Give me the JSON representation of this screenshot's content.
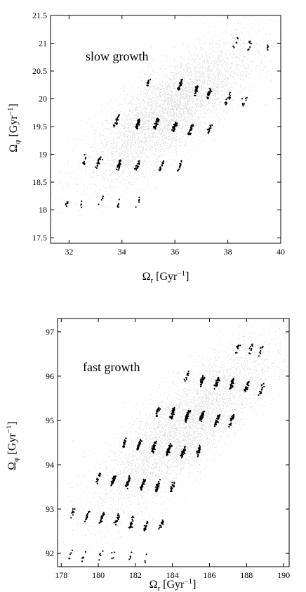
{
  "chart_data": [
    {
      "type": "scatter",
      "annotation": "slow growth",
      "xlabel": "Ω_r [Gyr^-1]",
      "ylabel": "Ω_φ [Gyr^-1]",
      "xlim": [
        31.3,
        40
      ],
      "ylim": [
        17.4,
        21.5
      ],
      "xticks": [
        32,
        34,
        36,
        38,
        40
      ],
      "yticks": [
        17.5,
        18,
        18.5,
        19,
        19.5,
        20,
        20.5,
        21,
        21.5
      ],
      "grid": false,
      "background_cloud": {
        "center": [
          35.8,
          19.8
        ],
        "spread": [
          1.6,
          0.75
        ],
        "tilt": 0.32,
        "color": "#b0b0b0"
      },
      "clumps": [
        {
          "x": 38.3,
          "y": 21.0,
          "n": 6
        },
        {
          "x": 38.8,
          "y": 20.95,
          "n": 8
        },
        {
          "x": 39.5,
          "y": 20.9,
          "n": 5
        },
        {
          "x": 35.0,
          "y": 20.3,
          "n": 10
        },
        {
          "x": 36.2,
          "y": 20.25,
          "n": 25
        },
        {
          "x": 36.8,
          "y": 20.15,
          "n": 30
        },
        {
          "x": 37.3,
          "y": 20.1,
          "n": 25
        },
        {
          "x": 38.0,
          "y": 20.0,
          "n": 15
        },
        {
          "x": 38.6,
          "y": 19.95,
          "n": 8
        },
        {
          "x": 33.8,
          "y": 19.6,
          "n": 20
        },
        {
          "x": 34.6,
          "y": 19.55,
          "n": 35
        },
        {
          "x": 35.3,
          "y": 19.55,
          "n": 40
        },
        {
          "x": 36.0,
          "y": 19.5,
          "n": 35
        },
        {
          "x": 36.6,
          "y": 19.45,
          "n": 25
        },
        {
          "x": 37.3,
          "y": 19.45,
          "n": 15
        },
        {
          "x": 32.6,
          "y": 18.9,
          "n": 10
        },
        {
          "x": 33.1,
          "y": 18.85,
          "n": 20
        },
        {
          "x": 33.9,
          "y": 18.8,
          "n": 25
        },
        {
          "x": 34.6,
          "y": 18.8,
          "n": 20
        },
        {
          "x": 35.5,
          "y": 18.8,
          "n": 15
        },
        {
          "x": 36.2,
          "y": 18.8,
          "n": 12
        },
        {
          "x": 31.9,
          "y": 18.1,
          "n": 6
        },
        {
          "x": 32.5,
          "y": 18.15,
          "n": 5
        },
        {
          "x": 33.2,
          "y": 18.15,
          "n": 6
        },
        {
          "x": 33.9,
          "y": 18.15,
          "n": 6
        },
        {
          "x": 34.6,
          "y": 18.15,
          "n": 5
        }
      ]
    },
    {
      "type": "scatter",
      "annotation": "fast growth",
      "xlabel": "Ω_r [Gyr^-1]",
      "ylabel": "Ω_φ [Gyr^-1]",
      "xlim": [
        177.8,
        190.3
      ],
      "ylim": [
        91.7,
        97.3
      ],
      "xticks": [
        178,
        180,
        182,
        184,
        186,
        188,
        190
      ],
      "yticks": [
        92,
        93,
        94,
        95,
        96,
        97
      ],
      "grid": false,
      "background_cloud": {
        "center": [
          184.5,
          94.8
        ],
        "spread": [
          2.5,
          1.0
        ],
        "tilt": 0.34,
        "color": "#b0b0b0"
      },
      "clumps": [
        {
          "x": 187.5,
          "y": 96.6,
          "n": 10
        },
        {
          "x": 188.2,
          "y": 96.6,
          "n": 10
        },
        {
          "x": 188.8,
          "y": 96.6,
          "n": 8
        },
        {
          "x": 184.8,
          "y": 96.0,
          "n": 12
        },
        {
          "x": 185.6,
          "y": 95.9,
          "n": 30
        },
        {
          "x": 186.4,
          "y": 95.85,
          "n": 35
        },
        {
          "x": 187.2,
          "y": 95.8,
          "n": 35
        },
        {
          "x": 188.0,
          "y": 95.75,
          "n": 30
        },
        {
          "x": 188.8,
          "y": 95.7,
          "n": 15
        },
        {
          "x": 183.2,
          "y": 95.2,
          "n": 20
        },
        {
          "x": 184.0,
          "y": 95.15,
          "n": 35
        },
        {
          "x": 184.8,
          "y": 95.1,
          "n": 40
        },
        {
          "x": 185.6,
          "y": 95.1,
          "n": 40
        },
        {
          "x": 186.4,
          "y": 95.0,
          "n": 35
        },
        {
          "x": 187.2,
          "y": 95.0,
          "n": 25
        },
        {
          "x": 181.4,
          "y": 94.5,
          "n": 18
        },
        {
          "x": 182.2,
          "y": 94.45,
          "n": 35
        },
        {
          "x": 183.0,
          "y": 94.4,
          "n": 40
        },
        {
          "x": 183.8,
          "y": 94.35,
          "n": 40
        },
        {
          "x": 184.6,
          "y": 94.3,
          "n": 35
        },
        {
          "x": 185.4,
          "y": 94.3,
          "n": 25
        },
        {
          "x": 180.0,
          "y": 93.7,
          "n": 15
        },
        {
          "x": 180.8,
          "y": 93.65,
          "n": 30
        },
        {
          "x": 181.6,
          "y": 93.6,
          "n": 35
        },
        {
          "x": 182.4,
          "y": 93.55,
          "n": 35
        },
        {
          "x": 183.2,
          "y": 93.5,
          "n": 30
        },
        {
          "x": 184.0,
          "y": 93.5,
          "n": 20
        },
        {
          "x": 178.6,
          "y": 92.9,
          "n": 10
        },
        {
          "x": 179.4,
          "y": 92.85,
          "n": 15
        },
        {
          "x": 180.2,
          "y": 92.8,
          "n": 25
        },
        {
          "x": 181.0,
          "y": 92.75,
          "n": 25
        },
        {
          "x": 181.8,
          "y": 92.7,
          "n": 25
        },
        {
          "x": 182.6,
          "y": 92.65,
          "n": 20
        },
        {
          "x": 183.4,
          "y": 92.65,
          "n": 15
        },
        {
          "x": 178.5,
          "y": 92.0,
          "n": 5
        },
        {
          "x": 179.2,
          "y": 91.95,
          "n": 5
        },
        {
          "x": 180.1,
          "y": 91.95,
          "n": 5
        },
        {
          "x": 180.8,
          "y": 91.95,
          "n": 4
        },
        {
          "x": 181.7,
          "y": 91.9,
          "n": 4
        },
        {
          "x": 182.6,
          "y": 91.9,
          "n": 3
        }
      ]
    }
  ]
}
